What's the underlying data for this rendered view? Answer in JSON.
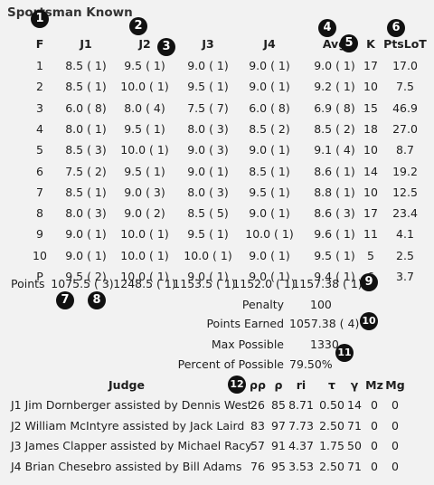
{
  "title": "Sportsman Known",
  "headers": {
    "f": "F",
    "j1": "J1",
    "j2": "J2",
    "j3": "J3",
    "j4": "J4",
    "avg": "Avg",
    "k": "K",
    "pts": "PtsLoT"
  },
  "rows": [
    {
      "f": "1",
      "j1": "8.5 ( 1)",
      "j2": "9.5 ( 1)",
      "j3": "9.0 ( 1)",
      "j4": "9.0 ( 1)",
      "avg": "9.0 ( 1)",
      "k": "17",
      "pts": "17.0"
    },
    {
      "f": "2",
      "j1": "8.5 ( 1)",
      "j2": "10.0 ( 1)",
      "j3": "9.5 ( 1)",
      "j4": "9.0 ( 1)",
      "avg": "9.2 ( 1)",
      "k": "10",
      "pts": "7.5"
    },
    {
      "f": "3",
      "j1": "6.0 ( 8)",
      "j2": "8.0 ( 4)",
      "j3": "7.5 ( 7)",
      "j4": "6.0 ( 8)",
      "avg": "6.9 ( 8)",
      "k": "15",
      "pts": "46.9"
    },
    {
      "f": "4",
      "j1": "8.0 ( 1)",
      "j2": "9.5 ( 1)",
      "j3": "8.0 ( 3)",
      "j4": "8.5 ( 2)",
      "avg": "8.5 ( 2)",
      "k": "18",
      "pts": "27.0"
    },
    {
      "f": "5",
      "j1": "8.5 ( 3)",
      "j2": "10.0 ( 1)",
      "j3": "9.0 ( 3)",
      "j4": "9.0 ( 1)",
      "avg": "9.1 ( 4)",
      "k": "10",
      "pts": "8.7"
    },
    {
      "f": "6",
      "j1": "7.5 ( 2)",
      "j2": "9.5 ( 1)",
      "j3": "9.0 ( 1)",
      "j4": "8.5 ( 1)",
      "avg": "8.6 ( 1)",
      "k": "14",
      "pts": "19.2"
    },
    {
      "f": "7",
      "j1": "8.5 ( 1)",
      "j2": "9.0 ( 3)",
      "j3": "8.0 ( 3)",
      "j4": "9.5 ( 1)",
      "avg": "8.8 ( 1)",
      "k": "10",
      "pts": "12.5"
    },
    {
      "f": "8",
      "j1": "8.0 ( 3)",
      "j2": "9.0 ( 2)",
      "j3": "8.5 ( 5)",
      "j4": "9.0 ( 1)",
      "avg": "8.6 ( 3)",
      "k": "17",
      "pts": "23.4"
    },
    {
      "f": "9",
      "j1": "9.0 ( 1)",
      "j2": "10.0 ( 1)",
      "j3": "9.5 ( 1)",
      "j4": "10.0 ( 1)",
      "avg": "9.6 ( 1)",
      "k": "11",
      "pts": "4.1"
    },
    {
      "f": "10",
      "j1": "9.0 ( 1)",
      "j2": "10.0 ( 1)",
      "j3": "10.0 ( 1)",
      "j4": "9.0 ( 1)",
      "avg": "9.5 ( 1)",
      "k": "5",
      "pts": "2.5"
    },
    {
      "f": "P",
      "j1": "9.5 ( 2)",
      "j2": "10.0 ( 1)",
      "j3": "9.0 ( 1)",
      "j4": "9.0 ( 1)",
      "avg": "9.4 ( 1)",
      "k": "6",
      "pts": "3.7"
    }
  ],
  "points_row": {
    "label": "Points",
    "j1": "1075.5 ( 3)",
    "j2": "1248.5 ( 1)",
    "j3": "1153.5 ( 1)",
    "j4": "1152.0 ( 1)",
    "avg": "1157.38 ( 1)"
  },
  "summary": [
    {
      "label": "Penalty",
      "value": "100"
    },
    {
      "label": "Points Earned",
      "value": "1057.38 ( 4)"
    },
    {
      "label": "Max Possible",
      "value": "1330"
    },
    {
      "label": "Percent of Possible",
      "value": "79.50%"
    }
  ],
  "judges_headers": {
    "judge": "Judge",
    "rr": "ρρ",
    "r": "ρ",
    "ri": "ri",
    "tau": "τ",
    "y": "γ",
    "mz": "Mz",
    "mg": "Mg"
  },
  "judges": [
    {
      "name": "J1 Jim Dornberger assisted by Dennis West",
      "rr": "26",
      "r": "85",
      "ri": "8.71",
      "tau": "0.50",
      "y": "14",
      "mz": "0",
      "mg": "0"
    },
    {
      "name": "J2 William McIntyre assisted by Jack Laird",
      "rr": "83",
      "r": "97",
      "ri": "7.73",
      "tau": "2.50",
      "y": "71",
      "mz": "0",
      "mg": "0"
    },
    {
      "name": "J3 James Clapper assisted by Michael Racy",
      "rr": "57",
      "r": "91",
      "ri": "4.37",
      "tau": "1.75",
      "y": "50",
      "mz": "0",
      "mg": "0"
    },
    {
      "name": "J4 Brian Chesebro assisted by Bill Adams",
      "rr": "76",
      "r": "95",
      "ri": "3.53",
      "tau": "2.50",
      "y": "71",
      "mz": "0",
      "mg": "0"
    }
  ],
  "badges": [
    "1",
    "2",
    "3",
    "4",
    "5",
    "6",
    "7",
    "8",
    "9",
    "10",
    "11",
    "12"
  ]
}
